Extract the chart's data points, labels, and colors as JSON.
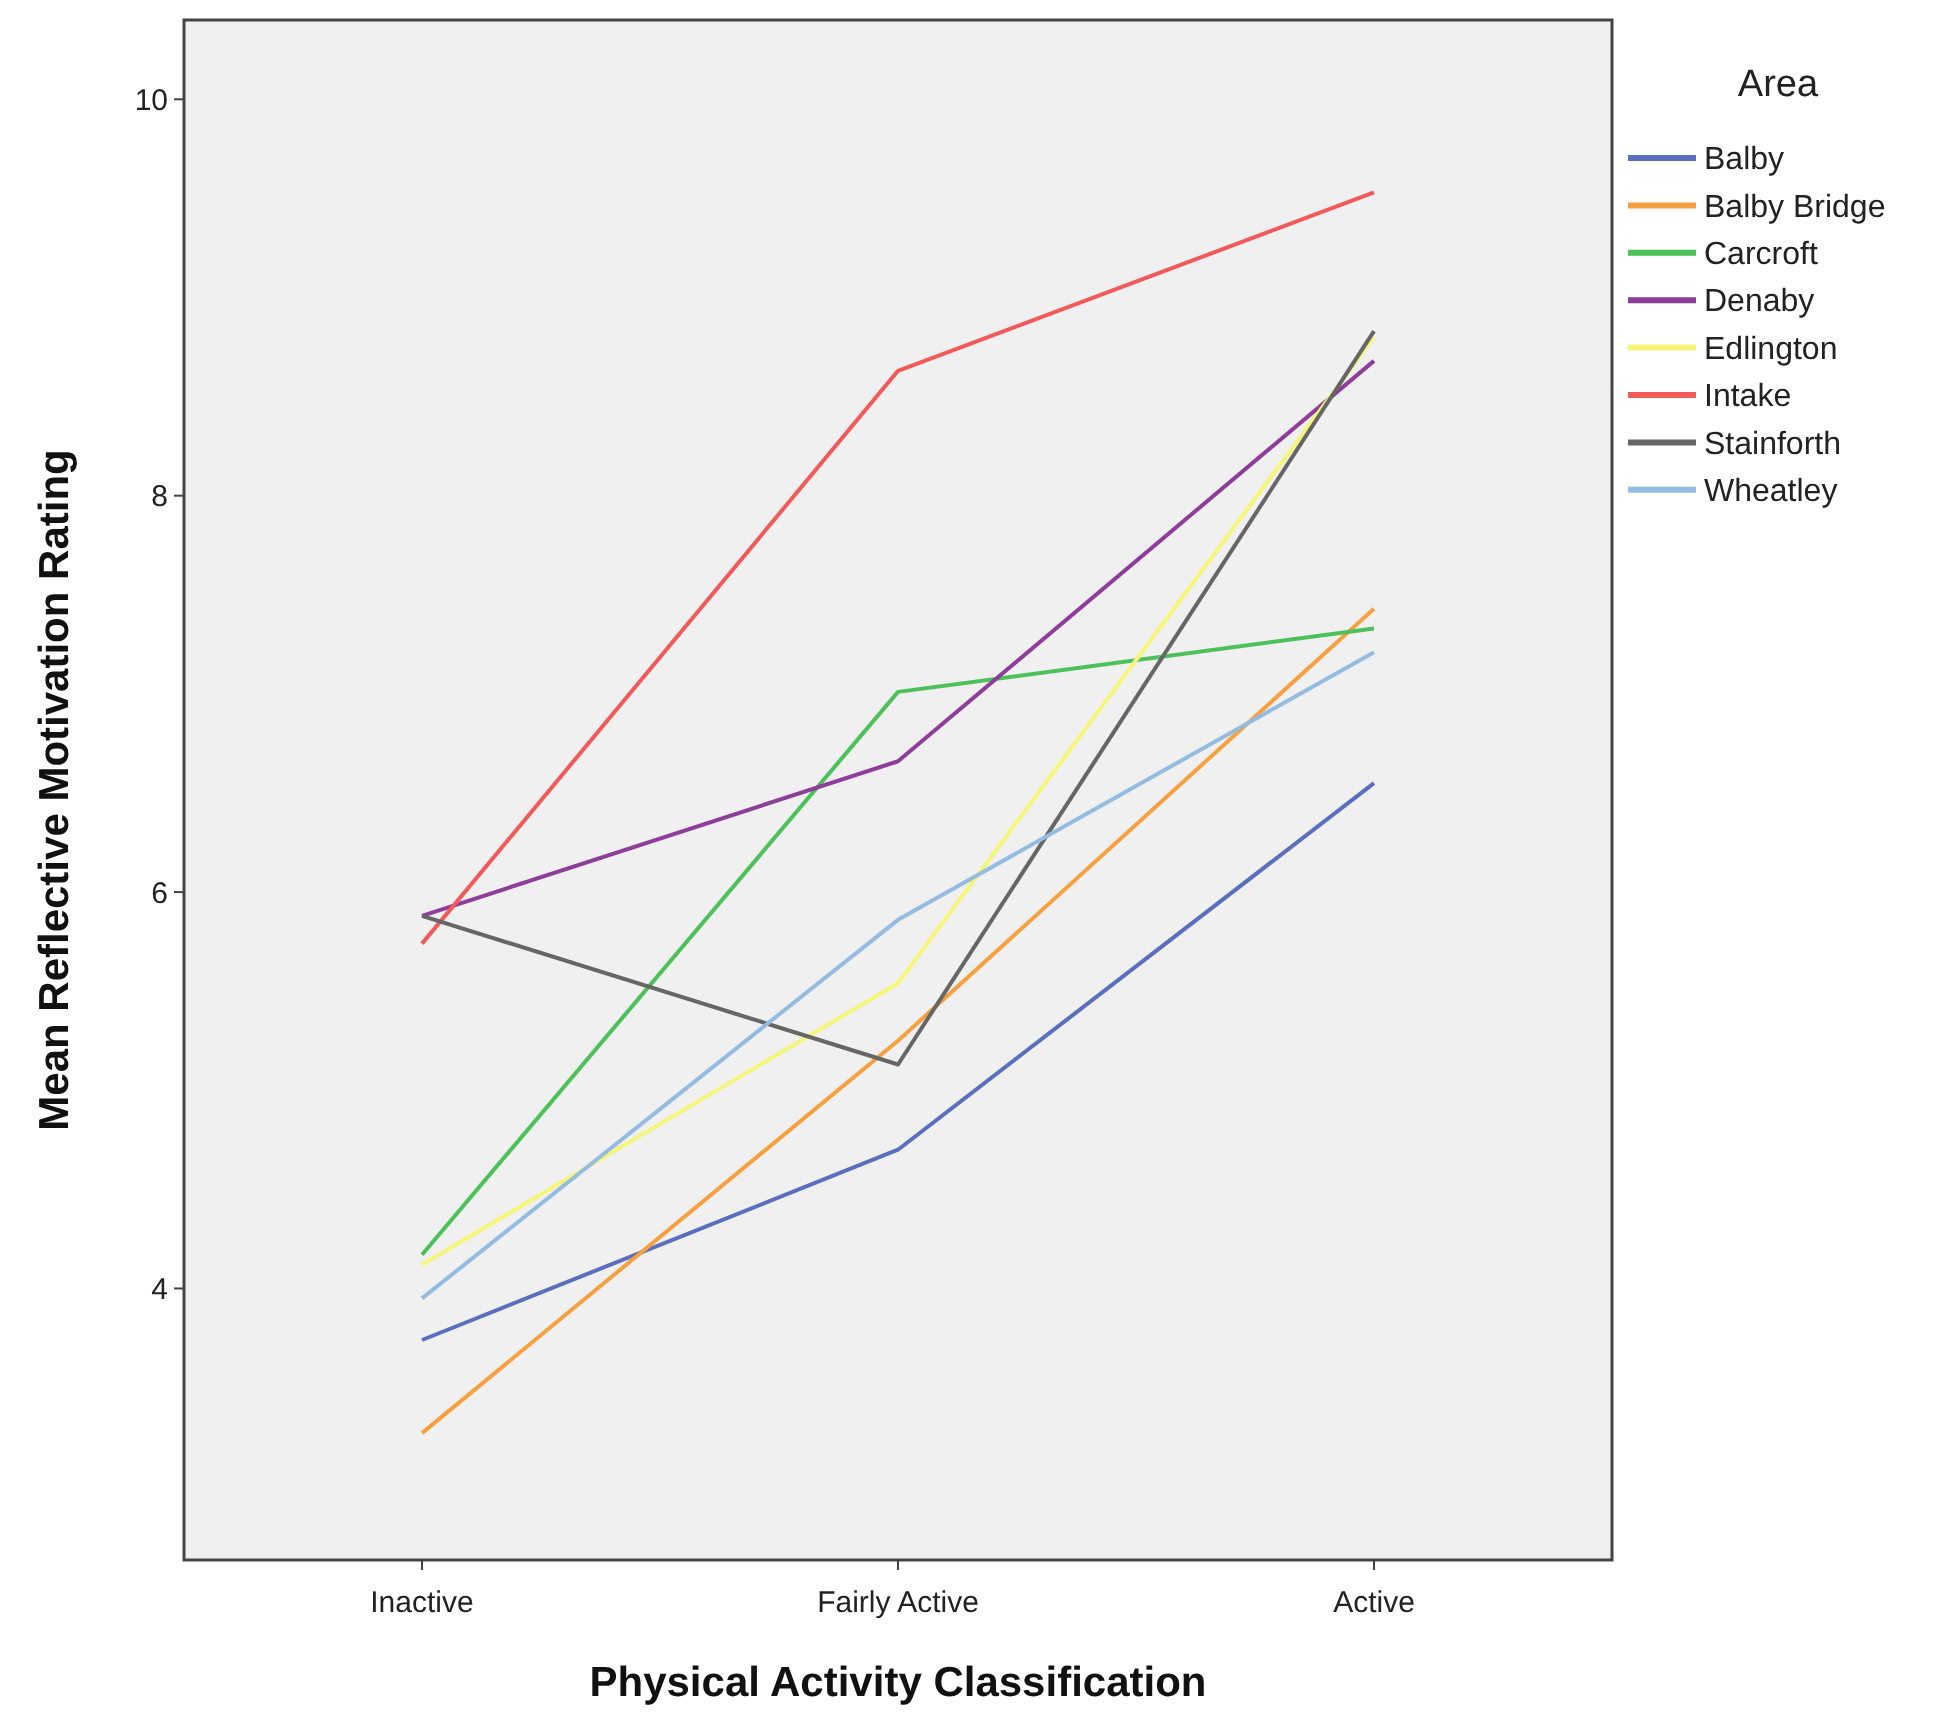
{
  "chart_data": {
    "type": "line",
    "xlabel": "Physical Activity Classification",
    "ylabel": "Mean Reflective Motivation Rating",
    "legend_title": "Area",
    "legend": "top right",
    "grid": false,
    "categories": [
      "Inactive",
      "Fairly Active",
      "Active"
    ],
    "ylim": [
      2.63,
      10.4
    ],
    "yticks": [
      4,
      6,
      8,
      10
    ],
    "series": [
      {
        "name": "Balby",
        "color": "#5b6fbf",
        "values": [
          3.74,
          4.7,
          6.55
        ]
      },
      {
        "name": "Balby Bridge",
        "color": "#f7a040",
        "values": [
          3.27,
          5.25,
          7.43
        ]
      },
      {
        "name": "Carcroft",
        "color": "#4cc15a",
        "values": [
          4.17,
          7.01,
          7.33
        ]
      },
      {
        "name": "Denaby",
        "color": "#8e3e9a",
        "values": [
          5.88,
          6.66,
          8.68
        ]
      },
      {
        "name": "Edlington",
        "color": "#f5f57a",
        "values": [
          4.12,
          5.54,
          8.8
        ]
      },
      {
        "name": "Intake",
        "color": "#f25a5a",
        "values": [
          5.74,
          8.63,
          9.53
        ]
      },
      {
        "name": "Stainforth",
        "color": "#666666",
        "values": [
          5.88,
          5.13,
          8.83
        ]
      },
      {
        "name": "Wheatley",
        "color": "#94bce0",
        "values": [
          3.95,
          5.86,
          7.21
        ]
      }
    ]
  }
}
